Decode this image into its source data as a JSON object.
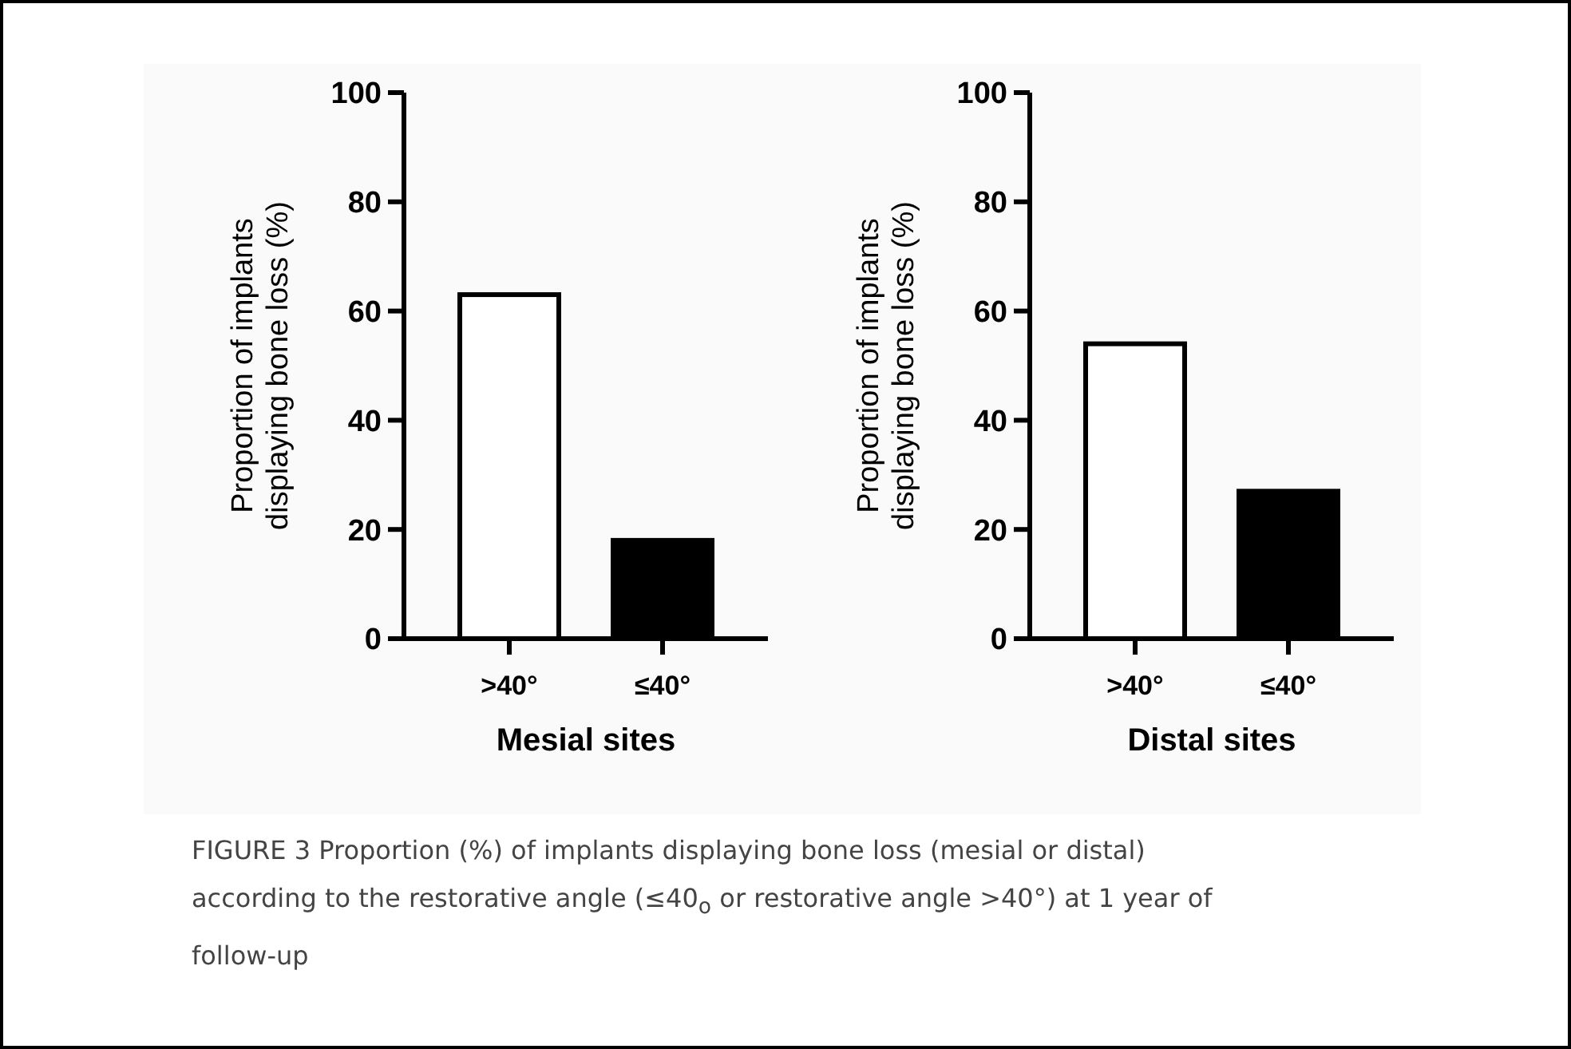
{
  "chart_data": [
    {
      "type": "bar",
      "categories": [
        ">40°",
        "≤40°"
      ],
      "values": [
        63,
        18
      ],
      "colors": [
        "#ffffff",
        "#000000"
      ],
      "xlabel": "Mesial sites",
      "ylabel": "Proportion of implants\ndisplaying bone loss  (%)",
      "ylim": [
        0,
        100
      ],
      "yticks": [
        0,
        20,
        40,
        60,
        80,
        100
      ],
      "grid": false,
      "annotations": [
        "FIGURE 3  Proportion (%) of implants displaying bone loss (mesial or distal) according to the restorative angle (≤40$_{o}$ or restorative angle >40°) at 1 year of follow-up"
      ]
    },
    {
      "type": "bar",
      "categories": [
        ">40°",
        "≤40°"
      ],
      "values": [
        54,
        27
      ],
      "colors": [
        "#ffffff",
        "#000000"
      ],
      "xlabel": "Distal sites",
      "ylabel": "Proportion of implants\ndisplaying bone loss  (%)",
      "ylim": [
        0,
        100
      ],
      "yticks": [
        0,
        20,
        40,
        60,
        80,
        100
      ],
      "grid": false
    }
  ]
}
